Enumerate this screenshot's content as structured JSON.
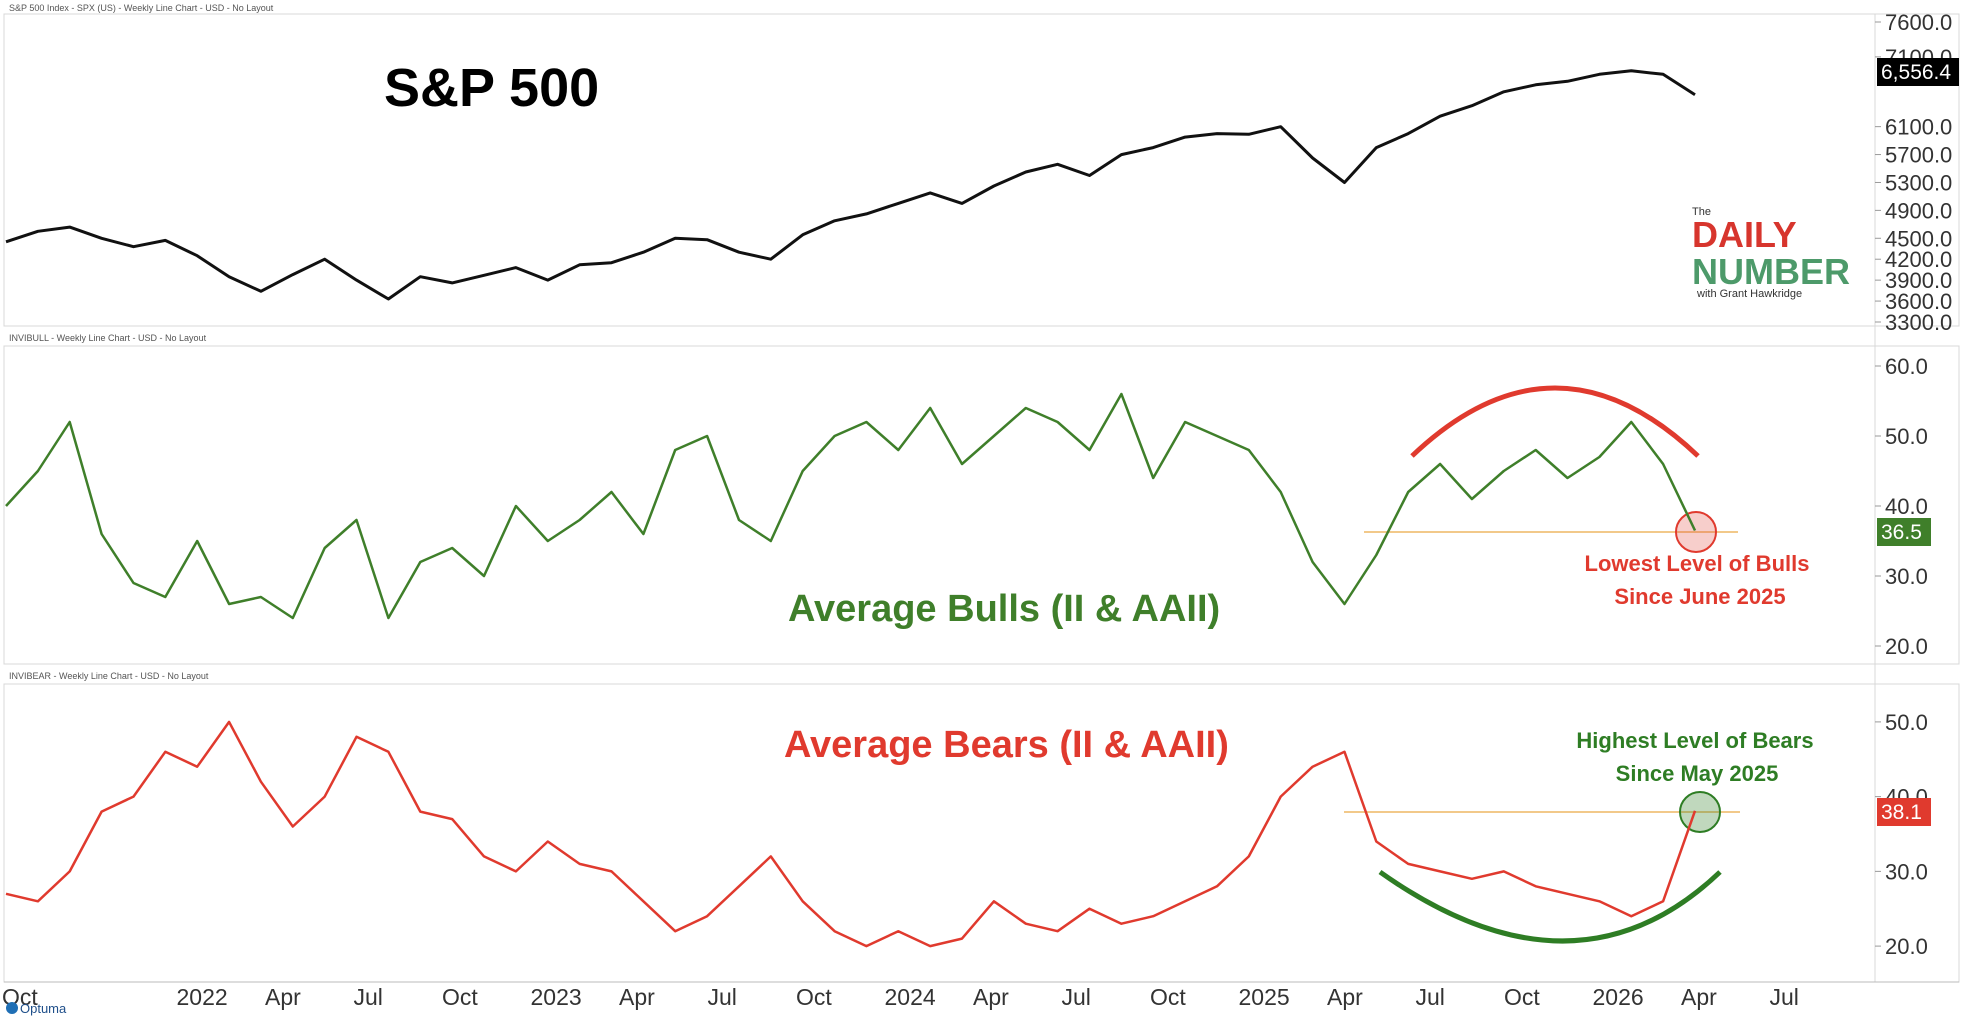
{
  "colors": {
    "spx_line": "#111111",
    "bulls_line": "#3f7f2a",
    "bears_line": "#e03a2e",
    "threshold": "#f2c98a",
    "arc_red": "#e03a2e",
    "arc_green": "#2e7d24",
    "bulls_tag": "#3f7f2a",
    "bears_tag": "#e03a2e",
    "spx_tag": "#000000"
  },
  "panels": {
    "spx": {
      "caption": "S&P 500 Index - SPX (US) - Weekly Line Chart - USD - No Layout",
      "title": "S&P 500",
      "last_value_tag": "6,556.4",
      "logo": {
        "the": "The",
        "daily": "DAILY",
        "number": "NUMBER",
        "byline": "with Grant Hawkridge"
      }
    },
    "bulls": {
      "caption": "INVIBULL - Weekly Line Chart - USD - No Layout",
      "title": "Average Bulls (II & AAII)",
      "last_value_tag": "36.5",
      "note_line1": "Lowest Level of Bulls",
      "note_line2": "Since June 2025"
    },
    "bears": {
      "caption": "INVIBEAR - Weekly Line Chart - USD - No Layout",
      "title": "Average Bears (II & AAII)",
      "last_value_tag": "38.1",
      "note_line1": "Highest Level of Bears",
      "note_line2": "Since May 2025"
    }
  },
  "footer": {
    "brand": "Optuma"
  },
  "chart_data": [
    {
      "type": "line",
      "title": "S&P 500",
      "x": [
        "Oct 2021",
        "Nov 2021",
        "Dec 2021",
        "Jan 2022",
        "Feb 2022",
        "Mar 2022",
        "Apr 2022",
        "May 2022",
        "Jun 2022",
        "Jul 2022",
        "Aug 2022",
        "Sep 2022",
        "Oct 2022",
        "Nov 2022",
        "Dec 2022",
        "Jan 2023",
        "Feb 2023",
        "Mar 2023",
        "Apr 2023",
        "May 2023",
        "Jun 2023",
        "Jul 2023",
        "Aug 2023",
        "Sep 2023",
        "Oct 2023",
        "Nov 2023",
        "Dec 2023",
        "Jan 2024",
        "Feb 2024",
        "Mar 2024",
        "Apr 2024",
        "May 2024",
        "Jun 2024",
        "Jul 2024",
        "Aug 2024",
        "Sep 2024",
        "Oct 2024",
        "Nov 2024",
        "Dec 2024",
        "Jan 2025",
        "Feb 2025",
        "Mar 2025",
        "Apr 2025",
        "May 2025",
        "Jun 2025",
        "Jul 2025",
        "Aug 2025",
        "Sep 2025",
        "Oct 2025",
        "Nov 2025",
        "Dec 2025",
        "Jan 2026",
        "Feb 2026",
        "Mar 2026"
      ],
      "series": [
        {
          "values": [
            4450,
            4600,
            4660,
            4500,
            4380,
            4470,
            4250,
            3950,
            3740,
            3980,
            4200,
            3900,
            3630,
            3950,
            3860,
            3970,
            4080,
            3900,
            4120,
            4150,
            4300,
            4500,
            4480,
            4300,
            4200,
            4550,
            4750,
            4850,
            5000,
            5150,
            5000,
            5250,
            5450,
            5560,
            5400,
            5700,
            5800,
            5950,
            6000,
            5990,
            6100,
            5650,
            5300,
            5800,
            6000,
            6250,
            6400,
            6600,
            6700,
            6750,
            6850,
            6900,
            6850,
            6556
          ]
        }
      ],
      "ylim": [
        3300,
        7600
      ],
      "yticks": [
        "7600.0",
        "7100.0",
        "6100.0",
        "5700.0",
        "5300.0",
        "4900.0",
        "4500.0",
        "4200.0",
        "3900.0",
        "3600.0",
        "3300.0"
      ],
      "grid": false
    },
    {
      "type": "line",
      "title": "Average Bulls (II & AAII)",
      "x": [
        "Oct 2021",
        "Nov 2021",
        "Dec 2021",
        "Jan 2022",
        "Feb 2022",
        "Mar 2022",
        "Apr 2022",
        "May 2022",
        "Jun 2022",
        "Jul 2022",
        "Aug 2022",
        "Sep 2022",
        "Oct 2022",
        "Nov 2022",
        "Dec 2022",
        "Jan 2023",
        "Feb 2023",
        "Mar 2023",
        "Apr 2023",
        "May 2023",
        "Jun 2023",
        "Jul 2023",
        "Aug 2023",
        "Sep 2023",
        "Oct 2023",
        "Nov 2023",
        "Dec 2023",
        "Jan 2024",
        "Feb 2024",
        "Mar 2024",
        "Apr 2024",
        "May 2024",
        "Jun 2024",
        "Jul 2024",
        "Aug 2024",
        "Sep 2024",
        "Oct 2024",
        "Nov 2024",
        "Dec 2024",
        "Jan 2025",
        "Feb 2025",
        "Mar 2025",
        "Apr 2025",
        "May 2025",
        "Jun 2025",
        "Jul 2025",
        "Aug 2025",
        "Sep 2025",
        "Oct 2025",
        "Nov 2025",
        "Dec 2025",
        "Jan 2026",
        "Feb 2026",
        "Mar 2026"
      ],
      "series": [
        {
          "values": [
            40,
            45,
            52,
            36,
            29,
            27,
            35,
            26,
            27,
            24,
            34,
            38,
            24,
            32,
            34,
            30,
            40,
            35,
            38,
            42,
            36,
            48,
            50,
            38,
            35,
            45,
            50,
            52,
            48,
            54,
            46,
            50,
            54,
            52,
            48,
            56,
            44,
            52,
            50,
            48,
            42,
            32,
            26,
            33,
            42,
            46,
            41,
            45,
            48,
            44,
            47,
            52,
            46,
            36.5
          ]
        }
      ],
      "ylim": [
        18,
        62
      ],
      "yticks": [
        "60.0",
        "50.0",
        "40.0",
        "30.0",
        "20.0"
      ],
      "grid": false,
      "annotations": [
        "Lowest Level of Bulls",
        "Since June 2025"
      ]
    },
    {
      "type": "line",
      "title": "Average Bears (II & AAII)",
      "x": [
        "Oct 2021",
        "Nov 2021",
        "Dec 2021",
        "Jan 2022",
        "Feb 2022",
        "Mar 2022",
        "Apr 2022",
        "May 2022",
        "Jun 2022",
        "Jul 2022",
        "Aug 2022",
        "Sep 2022",
        "Oct 2022",
        "Nov 2022",
        "Dec 2022",
        "Jan 2023",
        "Feb 2023",
        "Mar 2023",
        "Apr 2023",
        "May 2023",
        "Jun 2023",
        "Jul 2023",
        "Aug 2023",
        "Sep 2023",
        "Oct 2023",
        "Nov 2023",
        "Dec 2023",
        "Jan 2024",
        "Feb 2024",
        "Mar 2024",
        "Apr 2024",
        "May 2024",
        "Jun 2024",
        "Jul 2024",
        "Aug 2024",
        "Sep 2024",
        "Oct 2024",
        "Nov 2024",
        "Dec 2024",
        "Jan 2025",
        "Feb 2025",
        "Mar 2025",
        "Apr 2025",
        "May 2025",
        "Jun 2025",
        "Jul 2025",
        "Aug 2025",
        "Sep 2025",
        "Oct 2025",
        "Nov 2025",
        "Dec 2025",
        "Jan 2026",
        "Feb 2026",
        "Mar 2026"
      ],
      "series": [
        {
          "values": [
            27,
            26,
            30,
            38,
            40,
            46,
            44,
            50,
            42,
            36,
            40,
            48,
            46,
            38,
            37,
            32,
            30,
            34,
            31,
            30,
            26,
            22,
            24,
            28,
            32,
            26,
            22,
            20,
            22,
            20,
            21,
            26,
            23,
            22,
            25,
            23,
            24,
            26,
            28,
            32,
            40,
            44,
            46,
            34,
            31,
            30,
            29,
            30,
            28,
            27,
            26,
            24,
            26,
            38.1
          ]
        }
      ],
      "ylim": [
        16,
        54
      ],
      "yticks": [
        "50.0",
        "40.0",
        "30.0",
        "20.0"
      ],
      "grid": false,
      "annotations": [
        "Highest Level of Bears",
        "Since May 2025"
      ]
    }
  ],
  "xaxis": {
    "labels": [
      "Oct",
      "2022",
      "Apr",
      "Jul",
      "Oct",
      "2023",
      "Apr",
      "Jul",
      "Oct",
      "2024",
      "Apr",
      "Jul",
      "Oct",
      "2025",
      "Apr",
      "Jul",
      "Oct",
      "2026",
      "Apr",
      "Jul"
    ]
  }
}
